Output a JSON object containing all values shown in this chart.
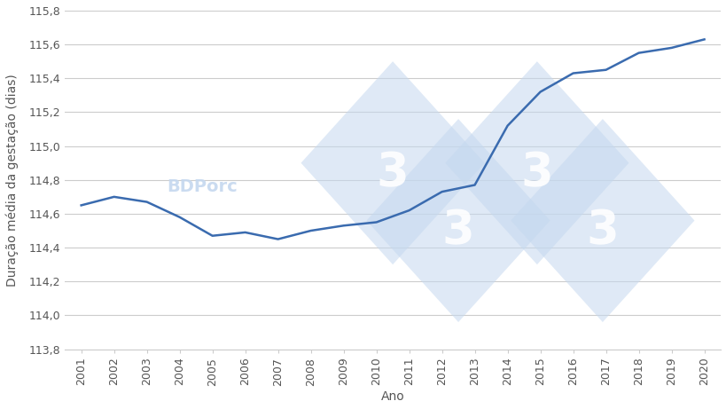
{
  "years": [
    2001,
    2002,
    2003,
    2004,
    2005,
    2006,
    2007,
    2008,
    2009,
    2010,
    2011,
    2012,
    2013,
    2014,
    2015,
    2016,
    2017,
    2018,
    2019,
    2020
  ],
  "values": [
    114.65,
    114.7,
    114.67,
    114.58,
    114.47,
    114.49,
    114.45,
    114.5,
    114.53,
    114.55,
    114.62,
    114.73,
    114.77,
    115.12,
    115.32,
    115.43,
    115.45,
    115.55,
    115.58,
    115.63
  ],
  "line_color": "#3a6baf",
  "line_width": 1.8,
  "ylabel": "Duração média da gestação (dias)",
  "xlabel": "Ano",
  "ylim": [
    113.8,
    115.8
  ],
  "yticks": [
    113.8,
    114.0,
    114.2,
    114.4,
    114.6,
    114.8,
    115.0,
    115.2,
    115.4,
    115.6,
    115.8
  ],
  "background_color": "#ffffff",
  "grid_color": "#cccccc",
  "tick_label_color": "#555555",
  "axis_label_color": "#555555",
  "watermark_bdporc": "BDPorc",
  "watermark_3": "3",
  "watermark_color": "#c5d8ef",
  "watermark_alpha": 0.55
}
